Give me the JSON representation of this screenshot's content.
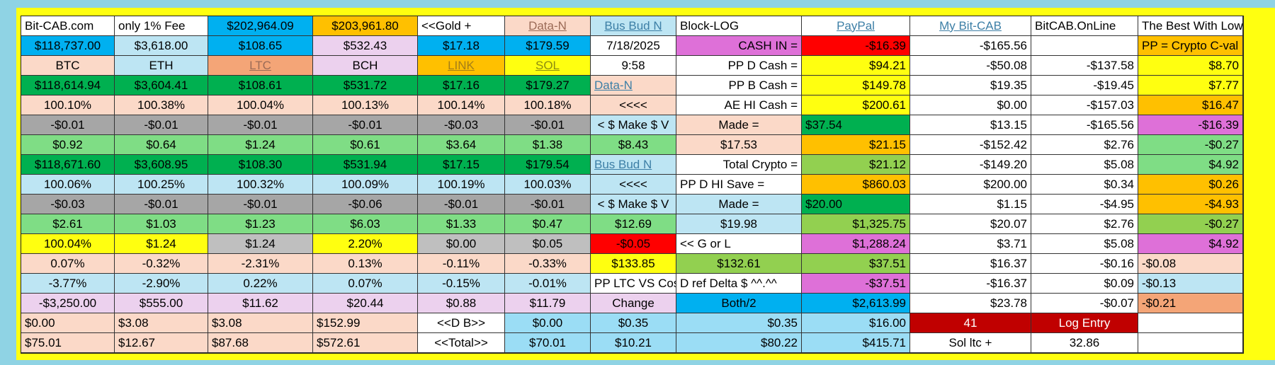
{
  "colors": {
    "background": "#8fd3e4",
    "frame": "#ffff10",
    "sky": "#00b0f0",
    "light_blue": "#bde5f3",
    "cyan": "#9bddf5",
    "peach": "#fbd9c8",
    "lavender": "#ecd1ee",
    "salmon": "#f4a577",
    "orange": "#ffc000",
    "yellow": "#ffff10",
    "green": "#00b050",
    "light_green": "#7fdd85",
    "gray": "#a6a6a6",
    "silver": "#bfbfbf",
    "red": "#ff0000",
    "magenta": "#de70d8",
    "olive_green": "#92d050",
    "dark_red": "#c00000",
    "white": "#ffffff"
  },
  "rows": [
    [
      "Bit-CAB.com",
      "only 1% Fee",
      "$202,964.09",
      "$203,961.80",
      "<<Gold +",
      "Data-N",
      "Bus Bud N",
      "Block-LOG",
      "",
      "PayPal",
      "My Bit-CAB",
      "BitCAB.OnLine",
      "The Best With Low Fee"
    ],
    [
      "$118,737.00",
      "$3,618.00",
      "$108.65",
      "$532.43",
      "$17.18",
      "$179.59",
      "7/18/2025",
      "CASH IN =",
      "",
      "-$16.39",
      "-$165.56",
      "",
      "PP = Crypto C-val"
    ],
    [
      "BTC",
      "ETH",
      "LTC",
      "BCH",
      "LINK",
      "SOL",
      "9:58",
      "PP  D  Cash =",
      "",
      "$94.21",
      "-$50.08",
      "-$137.58",
      "$8.70"
    ],
    [
      "$118,614.94",
      "$3,604.41",
      "$108.61",
      "$531.72",
      "$17.16",
      "$179.27",
      "Data-N",
      "PP  B  Cash =",
      "",
      "$149.78",
      "$19.35",
      "-$19.45",
      "$7.77"
    ],
    [
      "100.10%",
      "100.38%",
      "100.04%",
      "100.13%",
      "100.14%",
      "100.18%",
      "<<<<",
      "AE HI Cash =",
      "",
      "$200.61",
      "$0.00",
      "-$157.03",
      "$16.47"
    ],
    [
      "-$0.01",
      "-$0.01",
      "-$0.01",
      "-$0.01",
      "-$0.03",
      "-$0.01",
      "< $ Make $ V",
      "Made =",
      "",
      "$37.54",
      "$13.15",
      "-$165.56",
      "-$16.39"
    ],
    [
      "$0.92",
      "$0.64",
      "$1.24",
      "$0.61",
      "$3.64",
      "$1.38",
      "$8.43",
      "$17.53",
      "",
      "$21.15",
      "-$152.42",
      "$2.76",
      "-$0.27"
    ],
    [
      "$118,671.60",
      "$3,608.95",
      "$108.30",
      "$531.94",
      "$17.15",
      "$179.54",
      "Bus Bud N",
      "Total Crypto =",
      "",
      "$21.12",
      "-$149.20",
      "$5.08",
      "$4.92"
    ],
    [
      "100.06%",
      "100.25%",
      "100.32%",
      "100.09%",
      "100.19%",
      "100.03%",
      "<<<<",
      "PP D HI Save =",
      "",
      "$860.03",
      "$200.00",
      "$0.34",
      "$0.26"
    ],
    [
      "-$0.03",
      "-$0.01",
      "-$0.01",
      "-$0.06",
      "-$0.01",
      "-$0.01",
      "< $ Make $ V",
      "Made =",
      "",
      "$20.00",
      "$1.15",
      "-$4.95",
      "-$4.93"
    ],
    [
      "$2.61",
      "$1.03",
      "$1.23",
      "$6.03",
      "$1.33",
      "$0.47",
      "$12.69",
      "$19.98",
      "",
      "$1,325.75",
      "$20.07",
      "$2.76",
      "-$0.27"
    ],
    [
      "100.04%",
      "$1.24",
      "$1.24",
      "2.20%",
      "$0.00",
      "$0.05",
      "-$0.05",
      "<< G or L",
      "",
      "$1,288.24",
      "$3.71",
      "$5.08",
      "$4.92"
    ],
    [
      "0.07%",
      "-0.32%",
      "-2.31%",
      "0.13%",
      "-0.11%",
      "-0.33%",
      "$133.85",
      "$132.61",
      "",
      "$37.51",
      "$16.37",
      "-$0.16",
      "-$0.08"
    ],
    [
      "-3.77%",
      "-2.90%",
      "0.22%",
      "0.07%",
      "-0.15%",
      "-0.01%",
      "PP LTC VS Cos",
      "D ref  Delta  $ ^^.^^",
      "",
      "-$37.51",
      "-$16.37",
      "$0.09",
      "-$0.13"
    ],
    [
      "-$3,250.00",
      "$555.00",
      "$11.62",
      "$20.44",
      "$0.88",
      "$11.79",
      "Change",
      "Both/2",
      "",
      "$2,613.99",
      "$23.78",
      "-$0.07",
      "-$0.21"
    ],
    [
      "$0.00",
      "$3.08",
      "$3.08",
      "$152.99",
      "<<D  B>>",
      "$0.00",
      "$0.35",
      "$0.35",
      "",
      "$16.00",
      "41",
      "Log Entry",
      ""
    ],
    [
      "$75.01",
      "$12.67",
      "$87.68",
      "$572.61",
      "<<Total>>",
      "$70.01",
      "$10.21",
      "$80.22",
      "",
      "$415.71",
      "Sol ltc +",
      "32.86",
      ""
    ]
  ]
}
